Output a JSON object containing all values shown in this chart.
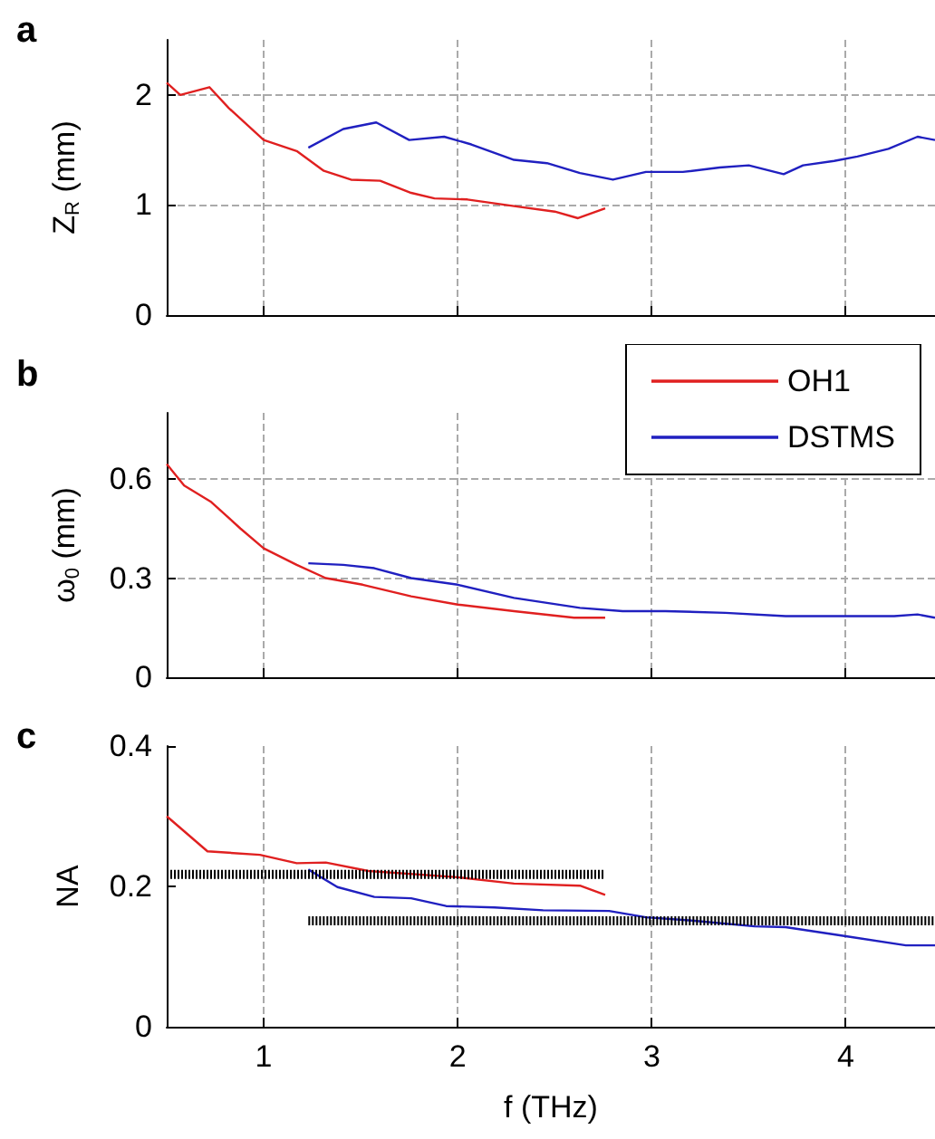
{
  "chart_data": [
    {
      "type": "line",
      "title": "a",
      "ylabel": "Z$_{R}$ (mm)",
      "xlim": [
        0.5,
        4.46
      ],
      "xticks": [
        1,
        2,
        3,
        4
      ],
      "ylim": [
        0,
        2.5
      ],
      "yticks": [
        0,
        1,
        2
      ],
      "grid": true,
      "tick_labels": "y",
      "marker": "none",
      "line_style": "solid",
      "series": [
        {
          "color": "#e02020",
          "x": [
            0.5,
            0.57,
            0.72,
            0.82,
            1.0,
            1.17,
            1.31,
            1.45,
            1.6,
            1.76,
            1.88,
            2.05,
            2.29,
            2.5,
            2.62,
            2.76
          ],
          "values": [
            2.11,
            2.0,
            2.07,
            1.88,
            1.59,
            1.49,
            1.31,
            1.23,
            1.22,
            1.11,
            1.06,
            1.05,
            0.99,
            0.94,
            0.88,
            0.97
          ]
        },
        {
          "color": "#2020c0",
          "x": [
            1.23,
            1.41,
            1.58,
            1.75,
            1.93,
            2.07,
            2.29,
            2.46,
            2.63,
            2.8,
            2.97,
            3.16,
            3.35,
            3.5,
            3.68,
            3.78,
            3.94,
            4.06,
            4.22,
            4.37,
            4.46
          ],
          "values": [
            1.52,
            1.69,
            1.75,
            1.59,
            1.62,
            1.55,
            1.41,
            1.38,
            1.29,
            1.23,
            1.3,
            1.3,
            1.34,
            1.36,
            1.28,
            1.36,
            1.4,
            1.44,
            1.51,
            1.62,
            1.59
          ]
        }
      ]
    },
    {
      "type": "line",
      "title": "b",
      "ylabel": "ω$_{0}$ (mm)",
      "xlim": [
        0.5,
        4.46
      ],
      "xticks": [
        1,
        2,
        3,
        4
      ],
      "ylim": [
        0,
        0.8
      ],
      "yticks": [
        0,
        0.3,
        0.6
      ],
      "grid": true,
      "tick_labels": "y",
      "legend": "top right",
      "marker": "none",
      "line_style": "solid",
      "series": [
        {
          "name": "OH1",
          "color": "#e02020",
          "x": [
            0.5,
            0.59,
            0.73,
            0.88,
            1.0,
            1.17,
            1.32,
            1.51,
            1.76,
            2.0,
            2.29,
            2.6,
            2.76
          ],
          "values": [
            0.645,
            0.58,
            0.53,
            0.45,
            0.39,
            0.34,
            0.3,
            0.28,
            0.245,
            0.22,
            0.2,
            0.18,
            0.18
          ]
        },
        {
          "name": "DSTMS",
          "color": "#2020c0",
          "x": [
            1.23,
            1.41,
            1.57,
            1.76,
            2.0,
            2.29,
            2.63,
            2.85,
            3.07,
            3.38,
            3.69,
            4.0,
            4.25,
            4.37,
            4.46
          ],
          "values": [
            0.345,
            0.34,
            0.33,
            0.3,
            0.28,
            0.24,
            0.21,
            0.2,
            0.2,
            0.195,
            0.185,
            0.185,
            0.185,
            0.19,
            0.18
          ]
        }
      ]
    },
    {
      "type": "line",
      "title": "c",
      "xlabel": "f (THz)",
      "ylabel": "NA",
      "xlim": [
        0.5,
        4.46
      ],
      "xticks": [
        1,
        2,
        3,
        4
      ],
      "ylim": [
        0,
        0.4
      ],
      "yticks": [
        0,
        0.2,
        0.4
      ],
      "grid": "x",
      "marker": "none",
      "line_style": "solid",
      "series": [
        {
          "color": "#e02020",
          "x": [
            0.5,
            0.71,
            0.98,
            1.17,
            1.32,
            1.54,
            2.0,
            2.29,
            2.63,
            2.76
          ],
          "values": [
            0.3,
            0.25,
            0.245,
            0.233,
            0.234,
            0.222,
            0.213,
            0.204,
            0.201,
            0.188
          ]
        },
        {
          "color": "#2020c0",
          "x": [
            1.23,
            1.38,
            1.57,
            1.76,
            1.94,
            2.19,
            2.44,
            2.78,
            2.97,
            3.22,
            3.53,
            3.69,
            4.0,
            4.31,
            4.46
          ],
          "values": [
            0.224,
            0.199,
            0.185,
            0.183,
            0.172,
            0.17,
            0.166,
            0.165,
            0.156,
            0.151,
            0.143,
            0.142,
            0.129,
            0.116,
            0.116
          ]
        },
        {
          "color": "#000000",
          "line_style": "dotted",
          "x": [
            0.5,
            2.76
          ],
          "values": [
            0.217,
            0.217
          ]
        },
        {
          "color": "#000000",
          "line_style": "dotted",
          "x": [
            1.23,
            4.46
          ],
          "values": [
            0.151,
            0.151
          ]
        }
      ]
    }
  ]
}
